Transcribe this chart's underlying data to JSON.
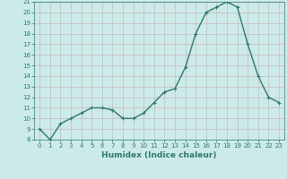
{
  "x": [
    0,
    1,
    2,
    3,
    4,
    5,
    6,
    7,
    8,
    9,
    10,
    11,
    12,
    13,
    14,
    15,
    16,
    17,
    18,
    19,
    20,
    21,
    22,
    23
  ],
  "y": [
    9,
    8,
    9.5,
    10,
    10.5,
    11,
    11,
    10.8,
    10,
    10,
    10.5,
    11.5,
    12.5,
    12.8,
    14.8,
    18,
    20,
    20.5,
    21,
    20.5,
    17,
    14,
    12,
    11.5
  ],
  "ylim": [
    8,
    21
  ],
  "xlim": [
    -0.5,
    23.5
  ],
  "yticks": [
    8,
    9,
    10,
    11,
    12,
    13,
    14,
    15,
    16,
    17,
    18,
    19,
    20,
    21
  ],
  "xticks": [
    0,
    1,
    2,
    3,
    4,
    5,
    6,
    7,
    8,
    9,
    10,
    11,
    12,
    13,
    14,
    15,
    16,
    17,
    18,
    19,
    20,
    21,
    22,
    23
  ],
  "xlabel": "Humidex (Indice chaleur)",
  "line_color": "#2d7a68",
  "marker_color": "#2d7a68",
  "bg_color": "#cceaea",
  "grid_color": "#c8b8b8",
  "tick_color": "#2d7a68",
  "label_color": "#2d7a68",
  "marker_size": 2.5,
  "line_width": 1.0,
  "tick_fontsize": 5.0,
  "xlabel_fontsize": 6.5
}
